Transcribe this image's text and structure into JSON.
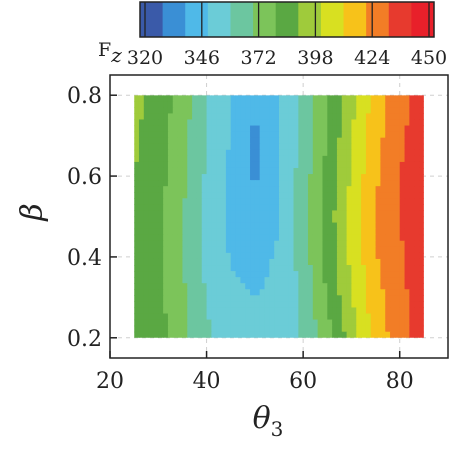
{
  "chart_data": {
    "type": "heatmap",
    "subtype": "filled-contour",
    "title": "",
    "xlabel": "θ",
    "xlabel_subscript": "3",
    "ylabel": "β",
    "xlim": [
      20,
      90
    ],
    "ylim": [
      0.15,
      0.85
    ],
    "xticks": [
      "20",
      "40",
      "60",
      "80"
    ],
    "yticks": [
      "0.2",
      "0.4",
      "0.6",
      "0.8"
    ],
    "data_x_range": [
      25,
      85
    ],
    "data_y_range": [
      0.2,
      0.8
    ],
    "grid": true,
    "colorbar": {
      "label": "F",
      "label_subscript": "z",
      "position": "top",
      "ticks": [
        "320",
        "346",
        "372",
        "398",
        "424",
        "450"
      ],
      "min": 320,
      "max": 450,
      "levels": [
        320,
        333,
        346,
        359,
        372,
        385,
        398,
        411,
        424,
        437,
        450
      ],
      "colors": [
        "#3a5aa9",
        "#3a8fd5",
        "#4fb9e8",
        "#6bccd7",
        "#6cc6a0",
        "#7cc45a",
        "#5aa843",
        "#9fcb3b",
        "#d8e021",
        "#f7c21a",
        "#f27d26",
        "#e73a2e",
        "#e8202a"
      ]
    },
    "fz_samples": {
      "theta3": [
        25,
        30,
        35,
        40,
        45,
        50,
        55,
        60,
        65,
        70,
        75,
        80,
        85
      ],
      "beta": [
        0.2,
        0.3,
        0.4,
        0.5,
        0.6,
        0.7,
        0.8
      ],
      "values": [
        [
          395,
          390,
          376,
          362,
          353,
          352,
          353,
          360,
          380,
          405,
          428,
          445,
          456
        ],
        [
          395,
          389,
          374,
          358,
          348,
          346,
          348,
          362,
          386,
          410,
          432,
          447,
          456
        ],
        [
          396,
          388,
          373,
          356,
          345,
          343,
          347,
          365,
          390,
          414,
          436,
          449,
          456
        ],
        [
          397,
          388,
          373,
          355,
          344,
          337,
          346,
          366,
          391,
          415,
          437,
          450,
          456
        ],
        [
          398,
          390,
          375,
          357,
          344,
          331,
          346,
          365,
          389,
          413,
          435,
          450,
          456
        ],
        [
          400,
          392,
          377,
          359,
          345,
          330,
          346,
          363,
          386,
          410,
          432,
          448,
          456
        ],
        [
          401,
          393,
          378,
          360,
          346,
          336,
          347,
          362,
          384,
          407,
          430,
          446,
          456
        ]
      ]
    }
  }
}
